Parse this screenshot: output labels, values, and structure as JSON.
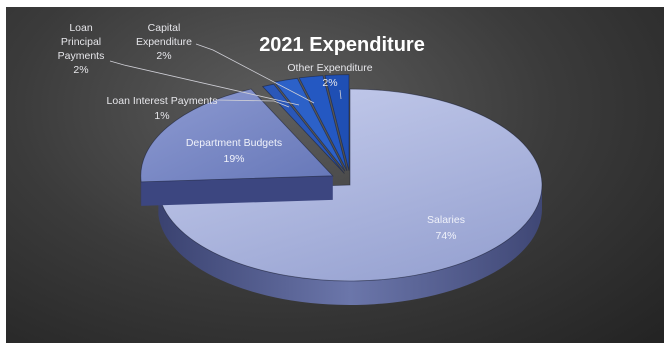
{
  "chart_data": {
    "type": "pie",
    "title": "2021 Expenditure",
    "slices": [
      {
        "name": "Salaries",
        "value": 74,
        "label": "74%",
        "color": "#a7b0d8"
      },
      {
        "name": "Department Budgets",
        "value": 19,
        "label": "19%",
        "color": "#7d8bc3"
      },
      {
        "name": "Loan Interest Payments",
        "value": 1,
        "label": "1%",
        "color": "#2a57b8"
      },
      {
        "name": "Loan Principal Payments",
        "value": 2,
        "label": "2%",
        "color": "#2c61c8"
      },
      {
        "name": "Capital Expenditure",
        "value": 2,
        "label": "2%",
        "color": "#2458c2"
      },
      {
        "name": "Other Expenditure",
        "value": 2,
        "label": "2%",
        "color": "#1f4fb4"
      }
    ],
    "style": "3d-exploded"
  }
}
